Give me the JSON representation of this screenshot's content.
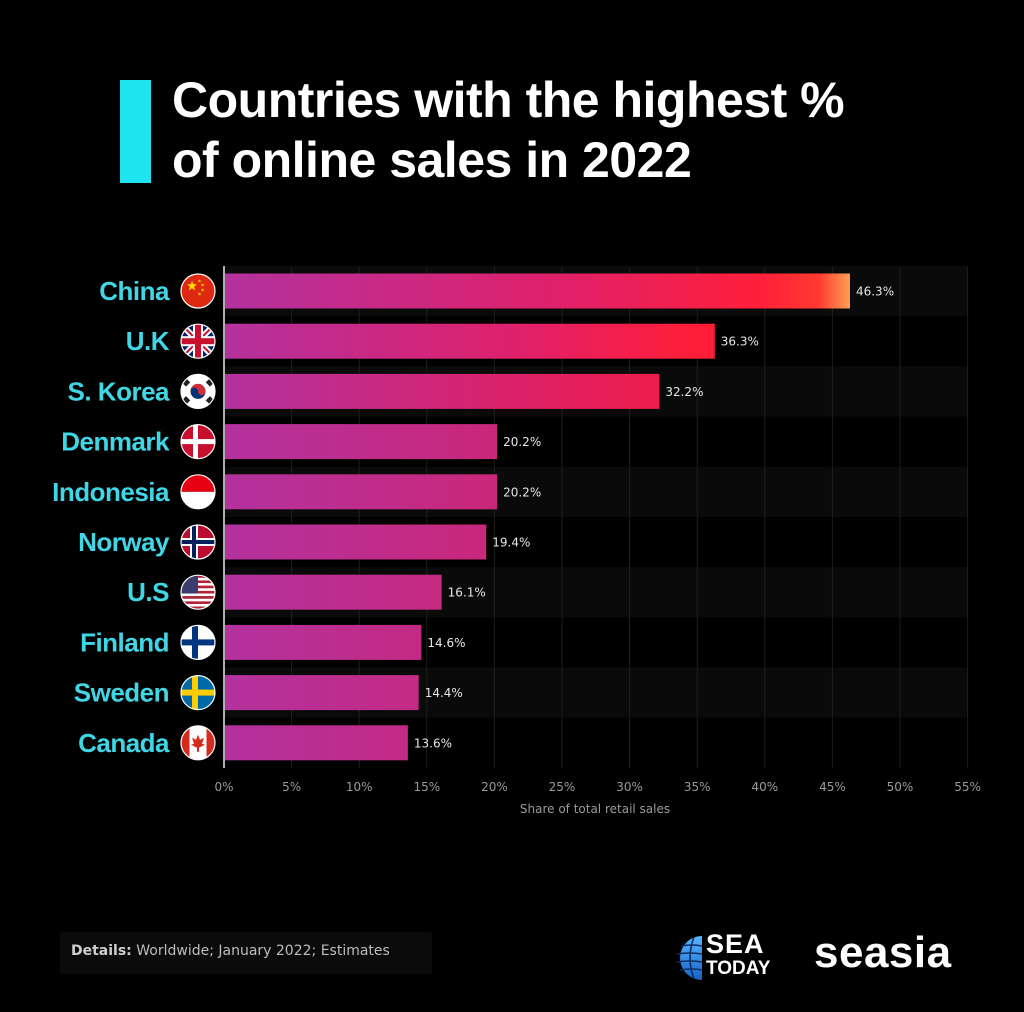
{
  "title_lines": [
    "Countries with the highest %",
    "of online sales in 2022"
  ],
  "chart_data": {
    "type": "bar",
    "orientation": "horizontal",
    "categories": [
      "China",
      "U.K",
      "S. Korea",
      "Denmark",
      "Indonesia",
      "Norway",
      "U.S",
      "Finland",
      "Sweden",
      "Canada"
    ],
    "values": [
      46.3,
      36.3,
      32.2,
      20.2,
      20.2,
      19.4,
      16.1,
      14.6,
      14.4,
      13.6
    ],
    "value_labels": [
      "46.3%",
      "36.3%",
      "32.2%",
      "20.2%",
      "20.2%",
      "19.4%",
      "16.1%",
      "14.6%",
      "14.4%",
      "13.6%"
    ],
    "xticks": [
      0,
      5,
      10,
      15,
      20,
      25,
      30,
      35,
      40,
      45,
      50,
      55
    ],
    "xtick_labels": [
      "0%",
      "5%",
      "10%",
      "15%",
      "20%",
      "25%",
      "30%",
      "35%",
      "40%",
      "45%",
      "50%",
      "55%"
    ],
    "xlabel": "Share of total retail sales",
    "xlim": [
      0,
      55
    ],
    "grid": "vertical",
    "flag_icons": [
      "china-flag-icon",
      "uk-flag-icon",
      "south-korea-flag-icon",
      "denmark-flag-icon",
      "indonesia-flag-icon",
      "norway-flag-icon",
      "us-flag-icon",
      "finland-flag-icon",
      "sweden-flag-icon",
      "canada-flag-icon"
    ]
  },
  "colors": {
    "background": "#000000",
    "accent": "#1fe3ee",
    "category_label": "#3fd7e6",
    "bar_start": "#b3329e",
    "bar_mid": "#e0206a",
    "bar_hot": "#ff1f3a",
    "bar_end": "#ffb45a"
  },
  "footer": {
    "details_label": "Details:",
    "details_text": " Worldwide; January 2022; Estimates"
  },
  "logos": {
    "sea_today_line1": "SEA",
    "sea_today_line2": "TODAY",
    "seasia": "seasia"
  }
}
